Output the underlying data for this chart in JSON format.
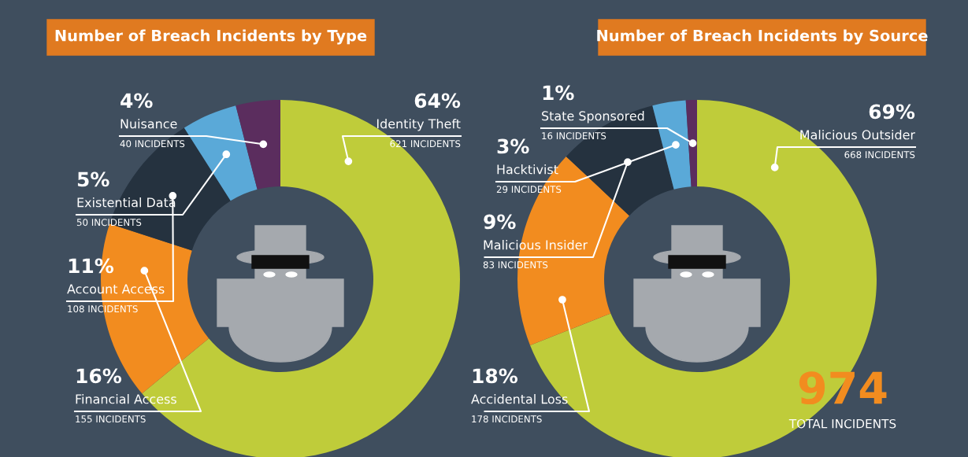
{
  "chart_data": [
    {
      "type": "donut",
      "title": "Number of Breach Incidents by Type",
      "categories": [
        "Identity Theft",
        "Financial Access",
        "Account Access",
        "Existential Data",
        "Nuisance"
      ],
      "values": [
        64,
        16,
        11,
        5,
        4
      ],
      "colors": [
        "#bfcc3a",
        "#f28c1f",
        "#25323f",
        "#5aa9d8",
        "#5b2d5e"
      ],
      "value_labels": [
        "64%",
        "16%",
        "11%",
        "5%",
        "4%"
      ],
      "annotations": [
        "621 INCIDENTS",
        "155 INCIDENTS",
        "108 INCIDENTS",
        "50 INCIDENTS",
        "40 INCIDENTS"
      ]
    },
    {
      "type": "donut",
      "title": "Number of Breach Incidents by Source",
      "categories": [
        "Malicious Outsider",
        "Accidental Loss",
        "Malicious Insider",
        "Hacktivist",
        "State Sponsored"
      ],
      "values": [
        69,
        18,
        9,
        3,
        1
      ],
      "colors": [
        "#bfcc3a",
        "#f28c1f",
        "#25323f",
        "#5aa9d8",
        "#5b2d5e"
      ],
      "value_labels": [
        "69%",
        "18%",
        "9%",
        "3%",
        "1%"
      ],
      "annotations": [
        "668 INCIDENTS",
        "178 INCIDENTS",
        "83 INCIDENTS",
        "29 INCIDENTS",
        "16 INCIDENTS",
        "974",
        "TOTAL INCIDENTS"
      ]
    }
  ]
}
